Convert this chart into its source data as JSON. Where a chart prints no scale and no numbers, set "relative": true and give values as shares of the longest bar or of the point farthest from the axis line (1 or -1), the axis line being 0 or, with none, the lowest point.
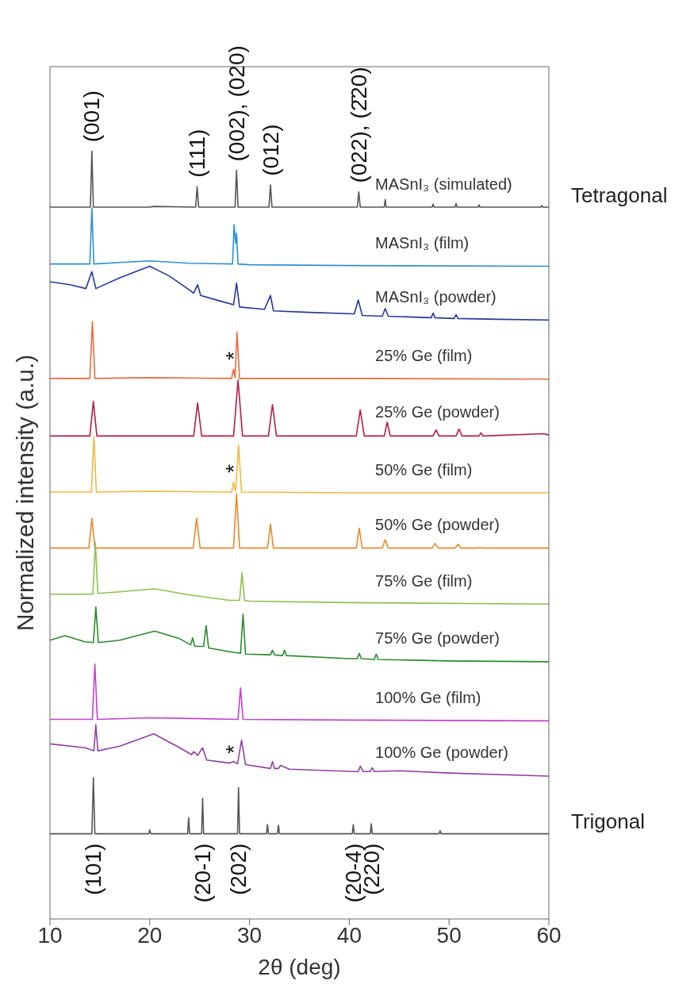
{
  "chart_data": {
    "type": "line",
    "relative": true,
    "xlabel": "2θ (deg)",
    "ylabel": "Normalized intensity (a.u.)",
    "xlim": [
      10,
      60
    ],
    "xticks": [
      10,
      20,
      30,
      40,
      50,
      60
    ],
    "series": [
      {
        "name": "MASnI₃ (simulated)",
        "color": "#555555",
        "x": [
          10,
          14.05,
          14.2,
          14.35,
          20,
          20.4,
          24.6,
          24.75,
          24.9,
          28.55,
          28.7,
          28.85,
          31.95,
          32.1,
          32.25,
          35,
          40.8,
          40.95,
          41.1,
          43.5,
          43.6,
          43.7,
          48.3,
          48.4,
          48.5,
          50.6,
          50.7,
          50.8,
          52.9,
          53.0,
          53.1,
          59.2,
          59.3,
          59.4,
          60
        ],
        "values": [
          0.927,
          0.927,
          1.0,
          0.927,
          0.927,
          0.928,
          0.927,
          0.954,
          0.927,
          0.927,
          0.975,
          0.927,
          0.927,
          0.956,
          0.927,
          0.927,
          0.927,
          0.947,
          0.927,
          0.927,
          0.937,
          0.927,
          0.927,
          0.931,
          0.927,
          0.927,
          0.932,
          0.927,
          0.927,
          0.93,
          0.927,
          0.927,
          0.929,
          0.927,
          0.927
        ]
      },
      {
        "name": "MASnI₃ (film)",
        "color": "#2d8fd4",
        "x": [
          10,
          14.0,
          14.2,
          14.4,
          17,
          20,
          24,
          28.3,
          28.45,
          28.6,
          28.7,
          28.85,
          30,
          40,
          60
        ],
        "values": [
          0.853,
          0.853,
          0.926,
          0.853,
          0.855,
          0.857,
          0.854,
          0.853,
          0.904,
          0.88,
          0.893,
          0.853,
          0.852,
          0.851,
          0.85
        ]
      },
      {
        "name": "MASnI₃ (powder)",
        "color": "#24389c",
        "x": [
          10,
          12,
          13.6,
          14.2,
          14.6,
          17,
          20,
          22,
          24,
          24.4,
          24.8,
          25.1,
          27,
          28.4,
          28.7,
          29,
          31.5,
          32.1,
          32.4,
          36,
          40.5,
          40.9,
          41.3,
          43.3,
          43.6,
          43.9,
          48.2,
          48.4,
          48.6,
          50.5,
          50.7,
          50.9,
          55,
          60
        ],
        "values": [
          0.83,
          0.826,
          0.821,
          0.843,
          0.821,
          0.835,
          0.85,
          0.837,
          0.819,
          0.815,
          0.826,
          0.812,
          0.805,
          0.8,
          0.828,
          0.797,
          0.794,
          0.812,
          0.792,
          0.79,
          0.788,
          0.806,
          0.786,
          0.785,
          0.795,
          0.785,
          0.783,
          0.789,
          0.783,
          0.782,
          0.787,
          0.782,
          0.781,
          0.78
        ]
      },
      {
        "name": "25% Ge (film)",
        "color": "#e96a3e",
        "x": [
          10,
          14.0,
          14.25,
          14.5,
          20,
          28.2,
          28.4,
          28.55,
          28.75,
          29.0,
          40,
          60
        ],
        "values": [
          0.704,
          0.704,
          0.778,
          0.704,
          0.705,
          0.704,
          0.716,
          0.705,
          0.764,
          0.704,
          0.704,
          0.703
        ]
      },
      {
        "name": "25% Ge (powder)",
        "color": "#b41e44",
        "x": [
          10,
          14.0,
          14.35,
          14.7,
          20,
          24.4,
          24.8,
          25.2,
          28.4,
          28.85,
          29.3,
          31.9,
          32.3,
          32.7,
          40.7,
          41.1,
          41.5,
          43.5,
          43.8,
          44.1,
          48.4,
          48.7,
          49.0,
          50.7,
          51.0,
          51.3,
          53.0,
          53.2,
          53.4,
          59.5,
          60
        ],
        "values": [
          0.629,
          0.629,
          0.674,
          0.629,
          0.629,
          0.629,
          0.672,
          0.629,
          0.629,
          0.702,
          0.629,
          0.629,
          0.67,
          0.629,
          0.629,
          0.663,
          0.629,
          0.629,
          0.647,
          0.629,
          0.629,
          0.637,
          0.629,
          0.629,
          0.638,
          0.629,
          0.629,
          0.633,
          0.629,
          0.632,
          0.63
        ]
      },
      {
        "name": "50% Ge (film)",
        "color": "#f3b63e",
        "x": [
          10,
          14.15,
          14.4,
          14.65,
          20,
          28.2,
          28.4,
          28.6,
          28.9,
          29.2,
          40,
          60
        ],
        "values": [
          0.556,
          0.556,
          0.628,
          0.556,
          0.557,
          0.556,
          0.569,
          0.557,
          0.617,
          0.556,
          0.555,
          0.555
        ]
      },
      {
        "name": "50% Ge (powder)",
        "color": "#e8892b",
        "x": [
          10,
          13.9,
          14.2,
          14.5,
          20,
          24.35,
          24.7,
          25.05,
          28.4,
          28.7,
          29.0,
          31.8,
          32.1,
          32.4,
          40.7,
          41.0,
          41.3,
          43.3,
          43.6,
          43.9,
          48.3,
          48.6,
          48.9,
          50.6,
          50.9,
          51.2,
          52.9,
          53.1,
          53.3,
          60
        ],
        "values": [
          0.483,
          0.483,
          0.522,
          0.483,
          0.483,
          0.483,
          0.522,
          0.483,
          0.483,
          0.554,
          0.483,
          0.483,
          0.514,
          0.483,
          0.483,
          0.509,
          0.483,
          0.483,
          0.494,
          0.483,
          0.483,
          0.489,
          0.483,
          0.483,
          0.488,
          0.483,
          0.483,
          0.484,
          0.483,
          0.483
        ]
      },
      {
        "name": "75% Ge (film)",
        "color": "#8dc04f",
        "x": [
          10,
          14.3,
          14.55,
          14.8,
          17,
          20.5,
          24,
          28,
          29.0,
          29.25,
          29.5,
          30,
          40,
          60
        ],
        "values": [
          0.423,
          0.423,
          0.49,
          0.424,
          0.426,
          0.43,
          0.422,
          0.415,
          0.415,
          0.451,
          0.415,
          0.414,
          0.412,
          0.41
        ]
      },
      {
        "name": "75% Ge (powder)",
        "color": "#2b8a2c",
        "x": [
          10,
          11.5,
          13.5,
          14.35,
          14.6,
          14.85,
          17,
          20.5,
          23,
          24.1,
          24.3,
          24.5,
          25.4,
          25.65,
          25.9,
          28,
          29.1,
          29.35,
          29.6,
          32.1,
          32.3,
          32.5,
          33.3,
          33.5,
          33.7,
          40,
          40.8,
          41.0,
          41.2,
          42.5,
          42.7,
          42.9,
          50,
          60
        ],
        "values": [
          0.363,
          0.369,
          0.361,
          0.36,
          0.406,
          0.36,
          0.363,
          0.375,
          0.365,
          0.357,
          0.366,
          0.355,
          0.355,
          0.382,
          0.353,
          0.348,
          0.346,
          0.397,
          0.345,
          0.344,
          0.35,
          0.344,
          0.343,
          0.35,
          0.343,
          0.339,
          0.339,
          0.346,
          0.339,
          0.338,
          0.345,
          0.338,
          0.336,
          0.335
        ]
      },
      {
        "name": "100% Ge (film)",
        "color": "#c63fd0",
        "x": [
          10,
          14.25,
          14.5,
          14.75,
          20,
          28.85,
          29.1,
          29.35,
          40,
          60
        ],
        "values": [
          0.26,
          0.26,
          0.332,
          0.26,
          0.262,
          0.26,
          0.301,
          0.26,
          0.259,
          0.258
        ]
      },
      {
        "name": "100% Ge (powder)",
        "color": "#8f40a2",
        "x": [
          10,
          13.5,
          14.4,
          14.6,
          14.8,
          17,
          20.4,
          23,
          24.2,
          24.4,
          24.8,
          25.3,
          25.7,
          28,
          28.4,
          28.8,
          29.2,
          29.6,
          32.1,
          32.3,
          32.5,
          32.9,
          33.1,
          34,
          40.5,
          40.9,
          41.1,
          41.4,
          42.1,
          42.3,
          42.5,
          45,
          50,
          60
        ],
        "values": [
          0.228,
          0.223,
          0.219,
          0.253,
          0.219,
          0.225,
          0.241,
          0.223,
          0.214,
          0.218,
          0.213,
          0.223,
          0.207,
          0.203,
          0.205,
          0.202,
          0.233,
          0.201,
          0.196,
          0.205,
          0.196,
          0.196,
          0.2,
          0.195,
          0.192,
          0.192,
          0.199,
          0.192,
          0.192,
          0.197,
          0.192,
          0.193,
          0.19,
          0.186
        ]
      },
      {
        "color": "#555555",
        "x": [
          10,
          14.2,
          14.35,
          14.5,
          19.9,
          20.0,
          20.1,
          23.8,
          23.9,
          24.0,
          25.2,
          25.3,
          25.4,
          28.8,
          28.9,
          29.0,
          31.7,
          31.8,
          31.9,
          32.8,
          32.9,
          33.0,
          40.3,
          40.4,
          40.5,
          42.1,
          42.2,
          42.3,
          49.0,
          49.1,
          49.2,
          60
        ],
        "values": [
          0.111,
          0.111,
          0.184,
          0.111,
          0.111,
          0.116,
          0.111,
          0.111,
          0.132,
          0.111,
          0.111,
          0.157,
          0.111,
          0.111,
          0.171,
          0.111,
          0.111,
          0.123,
          0.111,
          0.111,
          0.122,
          0.111,
          0.111,
          0.123,
          0.111,
          0.111,
          0.124,
          0.111,
          0.111,
          0.115,
          0.111,
          0.111
        ]
      }
    ],
    "annotations": [
      {
        "text": "(001)",
        "x": 14.2,
        "y": 1.0
      },
      {
        "text": "(111)",
        "x": 24.75,
        "y": 0.954
      },
      {
        "text": "(002), (020)",
        "x": 28.7,
        "y": 0.975
      },
      {
        "text": "(012)",
        "x": 32.1,
        "y": 0.956
      },
      {
        "text": "(022), (2̄20)",
        "x": 40.95,
        "y": 0.947
      },
      {
        "text": "*",
        "x": 28.4,
        "y": 0.716
      },
      {
        "text": "*",
        "x": 28.4,
        "y": 0.569
      },
      {
        "text": "*",
        "x": 28.4,
        "y": 0.203
      },
      {
        "text": "(101)",
        "x": 14.35,
        "y": 0.111
      },
      {
        "text": "(20-1)",
        "x": 25.3,
        "y": 0.111
      },
      {
        "text": "(202)",
        "x": 28.9,
        "y": 0.111
      },
      {
        "text": "(20-4)",
        "x": 40.4,
        "y": 0.111
      },
      {
        "text": "(220)",
        "x": 42.2,
        "y": 0.111
      },
      {
        "text": "Tetragonal",
        "x": 60,
        "y": 0.927
      },
      {
        "text": "Trigonal",
        "x": 60,
        "y": 0.111
      }
    ]
  }
}
